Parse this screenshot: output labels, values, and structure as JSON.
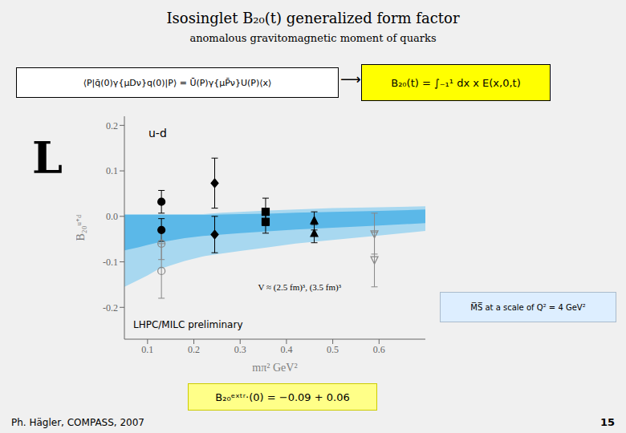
{
  "chart_data": {
    "type": "scatter",
    "title": "Isosinglet B₂₀(t) generalized form factor",
    "subtitle": "anomalous gravitomagnetic moment of quarks",
    "x_label": "mπ² GeV²",
    "y_label": "B₂₀ᵘ⁺ᵈ",
    "xlim": [
      0.05,
      0.7
    ],
    "ylim": [
      -0.27,
      0.22
    ],
    "xticks": [
      0.1,
      0.2,
      0.3,
      0.4,
      0.5,
      0.6
    ],
    "yticks": [
      0.2,
      0.1,
      {
        "value": 0.0,
        "label": "0.0"
      },
      -0.1,
      -0.2
    ],
    "bands": [
      {
        "type": "area",
        "color": "#a8d8f0",
        "x": [
          0.05,
          0.08,
          0.1,
          0.12,
          0.15,
          0.18,
          0.22,
          0.26,
          0.3,
          0.36,
          0.42,
          0.5,
          0.6,
          0.7
        ],
        "lower": [
          -0.155,
          -0.14,
          -0.13,
          -0.118,
          -0.108,
          -0.098,
          -0.088,
          -0.082,
          -0.076,
          -0.068,
          -0.06,
          -0.052,
          -0.042,
          -0.032
        ],
        "upper": [
          0.005,
          0.005,
          0.005,
          0.005,
          0.005,
          0.005,
          0.005,
          0.008,
          0.01,
          0.013,
          0.015,
          0.018,
          0.02,
          0.022
        ]
      },
      {
        "type": "area",
        "color": "#5bb8e8",
        "x": [
          0.05,
          0.08,
          0.1,
          0.12,
          0.15,
          0.18,
          0.22,
          0.26,
          0.3,
          0.36,
          0.42,
          0.5,
          0.6,
          0.7
        ],
        "lower": [
          -0.075,
          -0.068,
          -0.063,
          -0.058,
          -0.053,
          -0.048,
          -0.043,
          -0.04,
          -0.037,
          -0.033,
          -0.029,
          -0.025,
          -0.02,
          -0.015
        ],
        "upper": [
          0.003,
          0.003,
          0.003,
          0.003,
          0.003,
          0.003,
          0.003,
          0.004,
          0.005,
          0.006,
          0.008,
          0.01,
          0.012,
          0.015
        ]
      }
    ],
    "series": [
      {
        "color": "black",
        "marker": "circle",
        "x": [
          0.13,
          0.13
        ],
        "values": [
          0.032,
          -0.03
        ],
        "yerr": [
          0.025,
          0.025
        ]
      },
      {
        "color": "#888888",
        "marker": "circle_open",
        "x": [
          0.13,
          0.13
        ],
        "values": [
          -0.06,
          -0.12
        ],
        "yerr": [
          0.035,
          0.06
        ]
      },
      {
        "color": "black",
        "marker": "diamond",
        "x": [
          0.245,
          0.245
        ],
        "values": [
          0.073,
          -0.04
        ],
        "yerr": [
          0.055,
          0.04
        ]
      },
      {
        "color": "black",
        "marker": "square",
        "x": [
          0.355,
          0.355
        ],
        "values": [
          0.01,
          -0.012
        ],
        "yerr": [
          0.03,
          0.025
        ]
      },
      {
        "color": "black",
        "marker": "triangle",
        "x": [
          0.46,
          0.46
        ],
        "values": [
          -0.01,
          -0.038
        ],
        "yerr": [
          0.02,
          0.02
        ]
      },
      {
        "color": "#888888",
        "marker": "triangle_down_open",
        "x": [
          0.59,
          0.59
        ],
        "values": [
          -0.038,
          -0.095
        ],
        "yerr": [
          0.045,
          0.06
        ]
      }
    ],
    "annotations": [
      {
        "text": "u-d"
      },
      {
        "text": "V ≈ (2.5 fm)³, (3.5 fm)³",
        "x": 0.33,
        "y": -0.155
      },
      {
        "text": "LHPC/MILC preliminary"
      },
      {
        "text": "M̅S̅ at a scale of Q² = 4 GeV²"
      },
      {
        "text": "⟨P|q̄(0)γ{μDν}q(0)|P⟩ = Ū(P)γ{μP̄ν}U(P)⟨x⟩"
      },
      {
        "text": "⟶"
      },
      {
        "text": "B₂₀(t) = ∫₋₁¹ dx x E(x,0,t)"
      },
      {
        "text": "B₂₀ᵉˣᵗʳ·(0) = −0.09 + 0.06"
      },
      {
        "text": "Ph. Hägler, COMPASS, 2007"
      },
      {
        "text": "15"
      },
      {
        "text": "L"
      }
    ]
  }
}
